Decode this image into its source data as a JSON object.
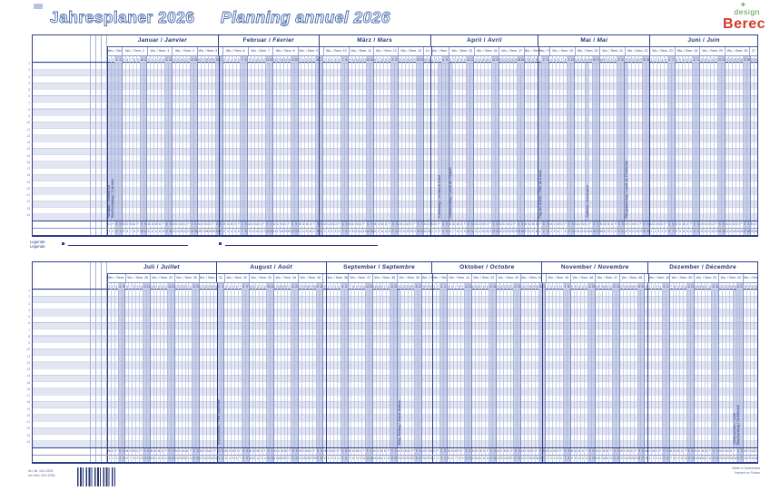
{
  "page": {
    "title_de": "Jahresplaner 2026",
    "title_fr": "Planning annuel 2026",
    "logo": {
      "diamond_icon": "diamond-clover",
      "design": "design",
      "berec": "Berec",
      "design_color": "#4a9b47",
      "berec_color": "#d23b2e"
    },
    "legend": {
      "label_de": "Legende:",
      "label_fr": "Légende:"
    },
    "print": {
      "art_no_line1": "Art.-Nr. 510.1536",
      "art_no_line2": "No d'art. 510.1536",
      "made_line1": "Made in Switzerland",
      "made_line2": "Imprimé en Suisse"
    },
    "colors": {
      "accent_navy": "#2e3f85",
      "header_text": "#1f3382",
      "weekend_fill": "#c6cde4",
      "row_stripe": "#e2e6f2",
      "title_outline": "#4a6aad"
    }
  },
  "calendar": {
    "year": "2026",
    "week_label_prefix": "Wo. / Sem.",
    "day_letters": [
      "M",
      "D",
      "M",
      "D",
      "F",
      "S",
      "S"
    ],
    "rows": 24,
    "halves": [
      {
        "name": "first-half",
        "months": [
          {
            "de": "Januar",
            "fr": "Janvier",
            "days": 31,
            "first_dow": 3,
            "weeks": [
              [
                1,
                4
              ],
              [
                2,
                7
              ],
              [
                3,
                7
              ],
              [
                4,
                7
              ],
              [
                5,
                6
              ]
            ],
            "holidays": [
              {
                "day": 1,
                "label": "Neujahr / Nouvel An"
              },
              {
                "day": 2,
                "label": "Berchtoldstag / 2 janvier"
              }
            ]
          },
          {
            "de": "Februar",
            "fr": "Février",
            "days": 28,
            "first_dow": 6,
            "weeks": [
              [
                5,
                1
              ],
              [
                6,
                7
              ],
              [
                7,
                7
              ],
              [
                8,
                7
              ],
              [
                9,
                6
              ]
            ],
            "holidays": []
          },
          {
            "de": "März",
            "fr": "Mars",
            "days": 31,
            "first_dow": 6,
            "weeks": [
              [
                9,
                1
              ],
              [
                10,
                7
              ],
              [
                11,
                7
              ],
              [
                12,
                7
              ],
              [
                13,
                7
              ],
              [
                14,
                2
              ]
            ],
            "holidays": []
          },
          {
            "de": "April",
            "fr": "Avril",
            "days": 30,
            "first_dow": 2,
            "weeks": [
              [
                14,
                5
              ],
              [
                15,
                7
              ],
              [
                16,
                7
              ],
              [
                17,
                7
              ],
              [
                18,
                4
              ]
            ],
            "holidays": [
              {
                "day": 3,
                "label": "Karfreitag / Vendredi Saint"
              },
              {
                "day": 6,
                "label": "Ostermontag / Lundi de Pâques"
              }
            ]
          },
          {
            "de": "Mai",
            "fr": "Mai",
            "days": 31,
            "first_dow": 4,
            "weeks": [
              [
                18,
                3
              ],
              [
                19,
                7
              ],
              [
                20,
                7
              ],
              [
                21,
                7
              ],
              [
                22,
                7
              ]
            ],
            "holidays": [
              {
                "day": 1,
                "label": "Tag der Arbeit / Fête du travail"
              },
              {
                "day": 14,
                "label": "Auffahrt / Ascension"
              },
              {
                "day": 25,
                "label": "Pfingstmontag / Lundi de Pentecôte"
              }
            ]
          },
          {
            "de": "Juni",
            "fr": "Juin",
            "days": 30,
            "first_dow": 0,
            "weeks": [
              [
                23,
                7
              ],
              [
                24,
                7
              ],
              [
                25,
                7
              ],
              [
                26,
                7
              ],
              [
                27,
                2
              ]
            ],
            "holidays": []
          }
        ]
      },
      {
        "name": "second-half",
        "months": [
          {
            "de": "Juli",
            "fr": "Juillet",
            "days": 31,
            "first_dow": 2,
            "weeks": [
              [
                27,
                5
              ],
              [
                28,
                7
              ],
              [
                29,
                7
              ],
              [
                30,
                7
              ],
              [
                31,
                5
              ]
            ],
            "holidays": []
          },
          {
            "de": "August",
            "fr": "Août",
            "days": 31,
            "first_dow": 5,
            "weeks": [
              [
                31,
                2
              ],
              [
                32,
                7
              ],
              [
                33,
                7
              ],
              [
                34,
                7
              ],
              [
                35,
                7
              ],
              [
                36,
                1
              ]
            ],
            "holidays": [
              {
                "day": 1,
                "label": "Bundesfeier / Fête nationale"
              }
            ]
          },
          {
            "de": "September",
            "fr": "Septembre",
            "days": 30,
            "first_dow": 1,
            "weeks": [
              [
                36,
                6
              ],
              [
                37,
                7
              ],
              [
                38,
                7
              ],
              [
                39,
                7
              ],
              [
                40,
                3
              ]
            ],
            "holidays": [
              {
                "day": 21,
                "label": "Eidg. Bettag / Jeûne fédéral"
              }
            ]
          },
          {
            "de": "Oktober",
            "fr": "Octobre",
            "days": 31,
            "first_dow": 3,
            "weeks": [
              [
                40,
                4
              ],
              [
                41,
                7
              ],
              [
                42,
                7
              ],
              [
                43,
                7
              ],
              [
                44,
                6
              ]
            ],
            "holidays": []
          },
          {
            "de": "November",
            "fr": "Novembre",
            "days": 30,
            "first_dow": 6,
            "weeks": [
              [
                44,
                1
              ],
              [
                45,
                7
              ],
              [
                46,
                7
              ],
              [
                47,
                7
              ],
              [
                48,
                7
              ],
              [
                49,
                1
              ]
            ],
            "holidays": []
          },
          {
            "de": "Dezember",
            "fr": "Décembre",
            "days": 31,
            "first_dow": 1,
            "weeks": [
              [
                49,
                6
              ],
              [
                50,
                7
              ],
              [
                51,
                7
              ],
              [
                52,
                7
              ],
              [
                53,
                4
              ]
            ],
            "holidays": [
              {
                "day": 25,
                "label": "Weihnachten / Noël"
              },
              {
                "day": 26,
                "label": "Stephanstag / St-Etienne"
              }
            ]
          }
        ]
      }
    ]
  }
}
